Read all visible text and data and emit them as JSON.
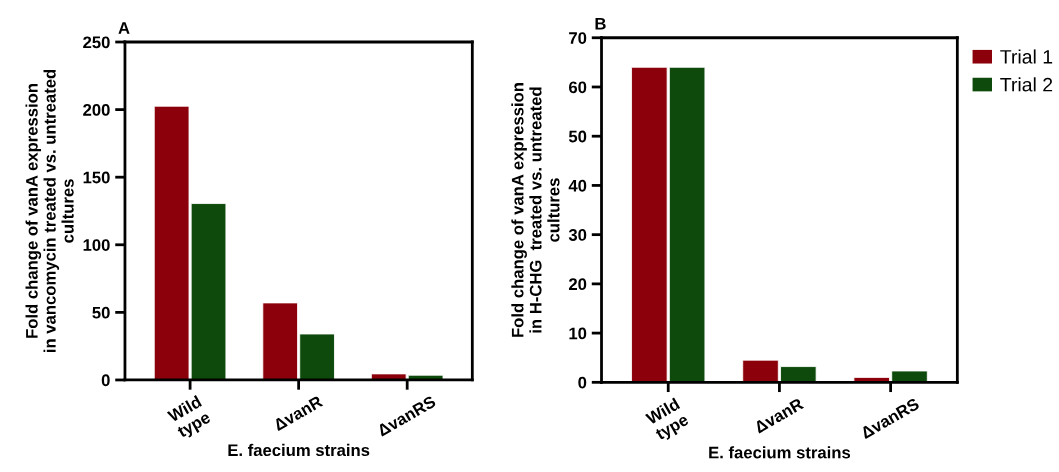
{
  "chart_data": [
    {
      "type": "bar",
      "title": "A",
      "xlabel": "E. faecium strains",
      "ylabel": "Fold change of vanA expression\nin vancomycin treated vs. untreated\ncultures",
      "categories": [
        "Wild\ntype",
        "ΔvanR",
        "ΔvanRS"
      ],
      "series": [
        {
          "color": "#8b000a",
          "values": [
            202.5,
            57,
            4.5
          ]
        },
        {
          "color": "#0d4a0b",
          "values": [
            130.5,
            34,
            3.5
          ]
        }
      ],
      "ylim": [
        0,
        250
      ],
      "yticks": [
        0,
        50,
        100,
        150,
        200,
        250
      ],
      "grid": false,
      "legend": false
    },
    {
      "type": "bar",
      "title": "B",
      "xlabel": "E. faecium strains",
      "ylabel": "Fold change of vanA expression\nin H-CHG  treated vs. untreated\ncultures",
      "categories": [
        "Wild\ntype",
        "ΔvanR",
        "ΔvanRS"
      ],
      "series": [
        {
          "name": "Trial 1",
          "color": "#8b000a",
          "values": [
            64,
            4.5,
            1
          ]
        },
        {
          "name": "Trial 2",
          "color": "#0d4a0b",
          "values": [
            64,
            3.2,
            2.3
          ]
        }
      ],
      "ylim": [
        0,
        70
      ],
      "yticks": [
        0,
        10,
        20,
        30,
        40,
        50,
        60,
        70
      ],
      "grid": false,
      "legend": "right"
    }
  ]
}
